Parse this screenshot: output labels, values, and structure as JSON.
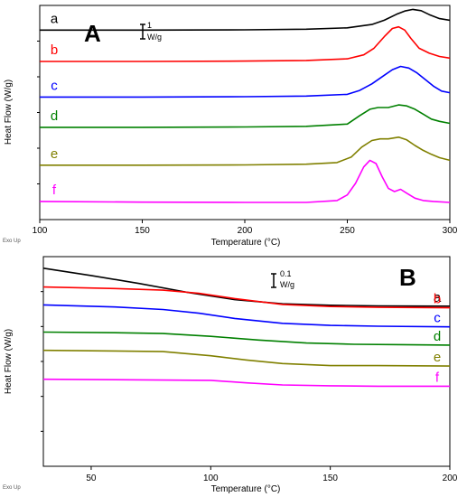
{
  "chart_data": [
    {
      "type": "line",
      "panel_label": "A",
      "ylabel": "Heat Flow (W/g)",
      "xlabel": "Temperature (°C)",
      "corner_note": "Exo Up",
      "scale_bar": {
        "value": "1",
        "unit": "W/g"
      },
      "xlim": [
        100,
        300
      ],
      "ylim": [
        0,
        6.5
      ],
      "xticks": [
        "100",
        "150",
        "200",
        "250",
        "300"
      ],
      "series": [
        {
          "name": "a",
          "color": "#000000",
          "x": [
            100,
            150,
            200,
            230,
            250,
            262,
            268,
            274,
            278,
            282,
            286,
            290,
            295,
            300
          ],
          "y": [
            5.75,
            5.75,
            5.76,
            5.78,
            5.82,
            5.92,
            6.05,
            6.23,
            6.33,
            6.38,
            6.34,
            6.22,
            6.1,
            6.05
          ]
        },
        {
          "name": "b",
          "color": "#ff0000",
          "x": [
            100,
            150,
            200,
            230,
            250,
            258,
            263,
            268,
            272,
            275,
            278,
            281,
            285,
            290,
            295,
            300
          ],
          "y": [
            4.8,
            4.8,
            4.81,
            4.83,
            4.88,
            5.0,
            5.2,
            5.55,
            5.8,
            5.85,
            5.75,
            5.5,
            5.2,
            5.05,
            4.95,
            4.9
          ]
        },
        {
          "name": "c",
          "color": "#0000ff",
          "x": [
            100,
            150,
            200,
            230,
            250,
            256,
            262,
            268,
            272,
            276,
            280,
            284,
            288,
            292,
            296,
            300
          ],
          "y": [
            3.72,
            3.72,
            3.73,
            3.75,
            3.8,
            3.92,
            4.12,
            4.38,
            4.55,
            4.65,
            4.6,
            4.45,
            4.25,
            4.05,
            3.9,
            3.85
          ]
        },
        {
          "name": "d",
          "color": "#008000",
          "x": [
            100,
            150,
            200,
            230,
            250,
            256,
            261,
            265,
            270,
            275,
            279,
            283,
            287,
            291,
            295,
            300
          ],
          "y": [
            2.8,
            2.8,
            2.81,
            2.83,
            2.9,
            3.15,
            3.35,
            3.4,
            3.4,
            3.48,
            3.45,
            3.35,
            3.2,
            3.05,
            2.98,
            2.92
          ]
        },
        {
          "name": "e",
          "color": "#808000",
          "x": [
            100,
            150,
            200,
            230,
            245,
            252,
            257,
            262,
            266,
            270,
            275,
            279,
            283,
            287,
            291,
            295,
            300
          ],
          "y": [
            1.65,
            1.65,
            1.66,
            1.68,
            1.73,
            1.9,
            2.2,
            2.4,
            2.45,
            2.45,
            2.5,
            2.42,
            2.25,
            2.1,
            1.98,
            1.88,
            1.8
          ]
        },
        {
          "name": "f",
          "color": "#ff00ff",
          "x": [
            100,
            150,
            200,
            230,
            245,
            250,
            254,
            258,
            261,
            264,
            267,
            270,
            273,
            276,
            279,
            283,
            287,
            292,
            300
          ],
          "y": [
            0.55,
            0.53,
            0.52,
            0.52,
            0.58,
            0.75,
            1.1,
            1.6,
            1.8,
            1.7,
            1.3,
            0.95,
            0.85,
            0.92,
            0.8,
            0.65,
            0.58,
            0.55,
            0.52
          ]
        }
      ]
    },
    {
      "type": "line",
      "panel_label": "B",
      "ylabel": "Heat Flow (W/g)",
      "xlabel": "Temperature (°C)",
      "corner_note": "Exo Up",
      "scale_bar": {
        "value": "0.1",
        "unit": "W/g"
      },
      "xlim": [
        30,
        200
      ],
      "ylim": [
        0,
        1.0
      ],
      "xticks": [
        "50",
        "100",
        "150",
        "200"
      ],
      "series": [
        {
          "name": "a",
          "color": "#000000",
          "x": [
            30,
            50,
            70,
            90,
            110,
            130,
            150,
            170,
            200
          ],
          "y": [
            0.945,
            0.91,
            0.872,
            0.83,
            0.795,
            0.775,
            0.768,
            0.765,
            0.764
          ]
        },
        {
          "name": "b",
          "color": "#ff0000",
          "x": [
            30,
            60,
            80,
            95,
            110,
            130,
            150,
            170,
            200
          ],
          "y": [
            0.855,
            0.848,
            0.84,
            0.825,
            0.8,
            0.772,
            0.762,
            0.758,
            0.756
          ]
        },
        {
          "name": "c",
          "color": "#0000ff",
          "x": [
            30,
            60,
            80,
            95,
            110,
            130,
            150,
            170,
            200
          ],
          "y": [
            0.77,
            0.76,
            0.748,
            0.73,
            0.705,
            0.682,
            0.672,
            0.668,
            0.665
          ]
        },
        {
          "name": "d",
          "color": "#008000",
          "x": [
            30,
            60,
            80,
            100,
            120,
            140,
            160,
            180,
            200
          ],
          "y": [
            0.64,
            0.637,
            0.633,
            0.62,
            0.602,
            0.588,
            0.582,
            0.58,
            0.578
          ]
        },
        {
          "name": "e",
          "color": "#808000",
          "x": [
            30,
            60,
            80,
            100,
            115,
            130,
            150,
            170,
            200
          ],
          "y": [
            0.553,
            0.55,
            0.547,
            0.527,
            0.507,
            0.49,
            0.48,
            0.48,
            0.478
          ]
        },
        {
          "name": "f",
          "color": "#ff00ff",
          "x": [
            30,
            60,
            100,
            115,
            130,
            150,
            170,
            200
          ],
          "y": [
            0.415,
            0.413,
            0.41,
            0.398,
            0.388,
            0.384,
            0.382,
            0.382
          ]
        }
      ]
    }
  ]
}
